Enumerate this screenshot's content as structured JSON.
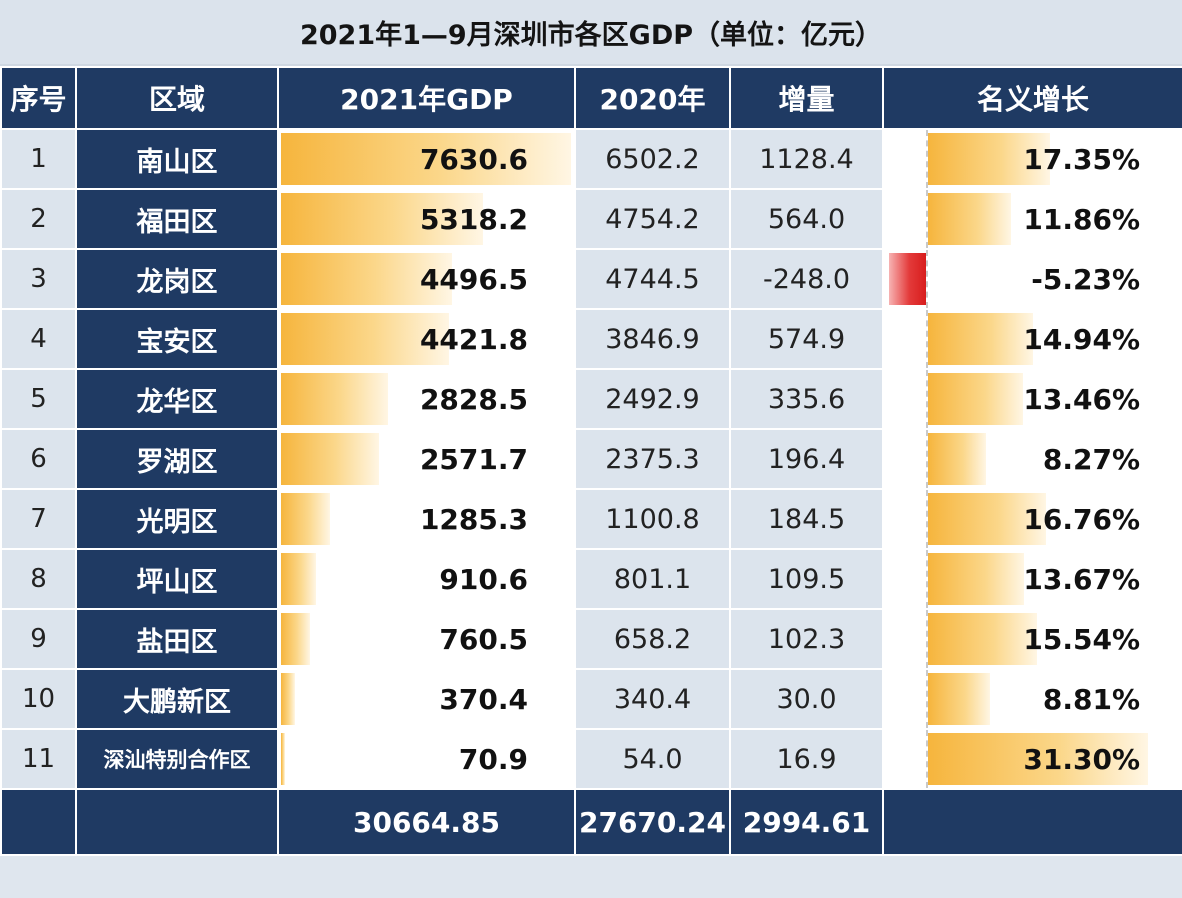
{
  "title": "2021年1—9月深圳市各区GDP（单位：亿元）",
  "colors": {
    "header_bg": "#1f3a63",
    "cell_bg": "#dce4ed",
    "bar_orange": "#f6b53d",
    "bar_red": "#d81d1d"
  },
  "chart_data": {
    "type": "table",
    "title": "2021年1—9月深圳市各区GDP（单位：亿元）",
    "columns": [
      "序号",
      "区域",
      "2021年GDP",
      "2020年",
      "增量",
      "名义增长"
    ],
    "rows": [
      {
        "no": "1",
        "district": "南山区",
        "gdp2021": "7630.6",
        "gdp2020": "6502.2",
        "increase": "1128.4",
        "growth": "17.35%",
        "gdp_value": 7630.6,
        "growth_value": 17.35
      },
      {
        "no": "2",
        "district": "福田区",
        "gdp2021": "5318.2",
        "gdp2020": "4754.2",
        "increase": "564.0",
        "growth": "11.86%",
        "gdp_value": 5318.2,
        "growth_value": 11.86
      },
      {
        "no": "3",
        "district": "龙岗区",
        "gdp2021": "4496.5",
        "gdp2020": "4744.5",
        "increase": "-248.0",
        "growth": "-5.23%",
        "gdp_value": 4496.5,
        "growth_value": -5.23
      },
      {
        "no": "4",
        "district": "宝安区",
        "gdp2021": "4421.8",
        "gdp2020": "3846.9",
        "increase": "574.9",
        "growth": "14.94%",
        "gdp_value": 4421.8,
        "growth_value": 14.94
      },
      {
        "no": "5",
        "district": "龙华区",
        "gdp2021": "2828.5",
        "gdp2020": "2492.9",
        "increase": "335.6",
        "growth": "13.46%",
        "gdp_value": 2828.5,
        "growth_value": 13.46
      },
      {
        "no": "6",
        "district": "罗湖区",
        "gdp2021": "2571.7",
        "gdp2020": "2375.3",
        "increase": "196.4",
        "growth": "8.27%",
        "gdp_value": 2571.7,
        "growth_value": 8.27
      },
      {
        "no": "7",
        "district": "光明区",
        "gdp2021": "1285.3",
        "gdp2020": "1100.8",
        "increase": "184.5",
        "growth": "16.76%",
        "gdp_value": 1285.3,
        "growth_value": 16.76
      },
      {
        "no": "8",
        "district": "坪山区",
        "gdp2021": "910.6",
        "gdp2020": "801.1",
        "increase": "109.5",
        "growth": "13.67%",
        "gdp_value": 910.6,
        "growth_value": 13.67
      },
      {
        "no": "9",
        "district": "盐田区",
        "gdp2021": "760.5",
        "gdp2020": "658.2",
        "increase": "102.3",
        "growth": "15.54%",
        "gdp_value": 760.5,
        "growth_value": 15.54
      },
      {
        "no": "10",
        "district": "大鹏新区",
        "gdp2021": "370.4",
        "gdp2020": "340.4",
        "increase": "30.0",
        "growth": "8.81%",
        "gdp_value": 370.4,
        "growth_value": 8.81
      },
      {
        "no": "11",
        "district": "深汕特别合作区",
        "gdp2021": "70.9",
        "gdp2020": "54.0",
        "increase": "16.9",
        "growth": "31.30%",
        "gdp_value": 70.9,
        "growth_value": 31.3
      }
    ],
    "totals": {
      "gdp2021": "30664.85",
      "gdp2020": "27670.24",
      "increase": "2994.61"
    },
    "gdp_bar_max": 7630.6,
    "growth_bar_max": 31.3
  }
}
